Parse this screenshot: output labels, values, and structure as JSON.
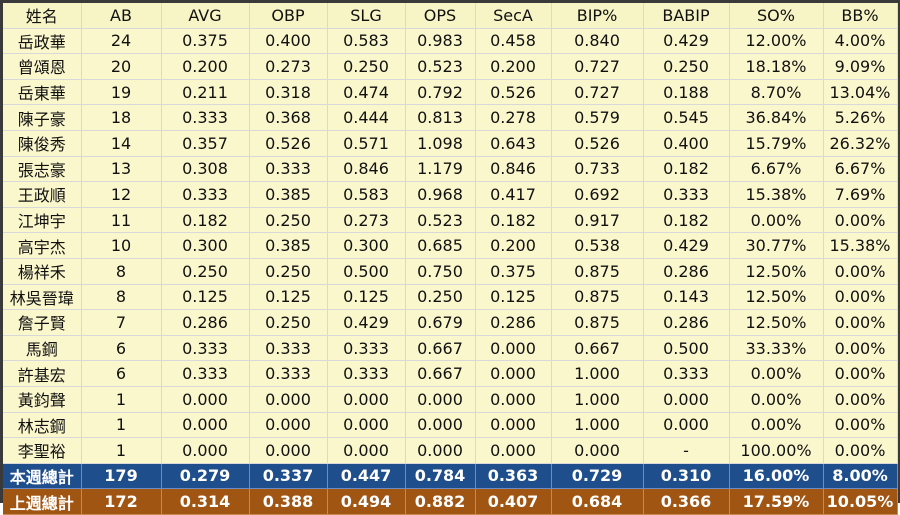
{
  "headers": [
    "姓名",
    "AB",
    "AVG",
    "OBP",
    "SLG",
    "OPS",
    "SecA",
    "BIP%",
    "BABIP",
    "SO%",
    "BB%"
  ],
  "rows": [
    [
      "岳政華",
      "24",
      "0.375",
      "0.400",
      "0.583",
      "0.983",
      "0.458",
      "0.840",
      "0.429",
      "12.00%",
      "4.00%"
    ],
    [
      "曾頌恩",
      "20",
      "0.200",
      "0.273",
      "0.250",
      "0.523",
      "0.200",
      "0.727",
      "0.250",
      "18.18%",
      "9.09%"
    ],
    [
      "岳東華",
      "19",
      "0.211",
      "0.318",
      "0.474",
      "0.792",
      "0.526",
      "0.727",
      "0.188",
      "8.70%",
      "13.04%"
    ],
    [
      "陳子豪",
      "18",
      "0.333",
      "0.368",
      "0.444",
      "0.813",
      "0.278",
      "0.579",
      "0.545",
      "36.84%",
      "5.26%"
    ],
    [
      "陳俊秀",
      "14",
      "0.357",
      "0.526",
      "0.571",
      "1.098",
      "0.643",
      "0.526",
      "0.400",
      "15.79%",
      "26.32%"
    ],
    [
      "張志豪",
      "13",
      "0.308",
      "0.333",
      "0.846",
      "1.179",
      "0.846",
      "0.733",
      "0.182",
      "6.67%",
      "6.67%"
    ],
    [
      "王政順",
      "12",
      "0.333",
      "0.385",
      "0.583",
      "0.968",
      "0.417",
      "0.692",
      "0.333",
      "15.38%",
      "7.69%"
    ],
    [
      "江坤宇",
      "11",
      "0.182",
      "0.250",
      "0.273",
      "0.523",
      "0.182",
      "0.917",
      "0.182",
      "0.00%",
      "0.00%"
    ],
    [
      "高宇杰",
      "10",
      "0.300",
      "0.385",
      "0.300",
      "0.685",
      "0.200",
      "0.538",
      "0.429",
      "30.77%",
      "15.38%"
    ],
    [
      "楊祥禾",
      "8",
      "0.250",
      "0.250",
      "0.500",
      "0.750",
      "0.375",
      "0.875",
      "0.286",
      "12.50%",
      "0.00%"
    ],
    [
      "林吳晉瑋",
      "8",
      "0.125",
      "0.125",
      "0.125",
      "0.250",
      "0.125",
      "0.875",
      "0.143",
      "12.50%",
      "0.00%"
    ],
    [
      "詹子賢",
      "7",
      "0.286",
      "0.250",
      "0.429",
      "0.679",
      "0.286",
      "0.875",
      "0.286",
      "12.50%",
      "0.00%"
    ],
    [
      "馬鋼",
      "6",
      "0.333",
      "0.333",
      "0.333",
      "0.667",
      "0.000",
      "0.667",
      "0.500",
      "33.33%",
      "0.00%"
    ],
    [
      "許基宏",
      "6",
      "0.333",
      "0.333",
      "0.333",
      "0.667",
      "0.000",
      "1.000",
      "0.333",
      "0.00%",
      "0.00%"
    ],
    [
      "黃鈞聲",
      "1",
      "0.000",
      "0.000",
      "0.000",
      "0.000",
      "0.000",
      "1.000",
      "0.000",
      "0.00%",
      "0.00%"
    ],
    [
      "林志鋼",
      "1",
      "0.000",
      "0.000",
      "0.000",
      "0.000",
      "0.000",
      "1.000",
      "0.000",
      "0.00%",
      "0.00%"
    ],
    [
      "李聖裕",
      "1",
      "0.000",
      "0.000",
      "0.000",
      "0.000",
      "0.000",
      "0.000",
      "-",
      "100.00%",
      "0.00%"
    ]
  ],
  "totals": {
    "this_week": [
      "本週總計",
      "179",
      "0.279",
      "0.337",
      "0.447",
      "0.784",
      "0.363",
      "0.729",
      "0.310",
      "16.00%",
      "8.00%"
    ],
    "last_week": [
      "上週總計",
      "172",
      "0.314",
      "0.388",
      "0.494",
      "0.882",
      "0.407",
      "0.684",
      "0.366",
      "17.59%",
      "10.05%"
    ]
  },
  "colors": {
    "body_bg": "#fbf7cd",
    "this_week_bg": "#1f4e8c",
    "last_week_bg": "#a05512"
  }
}
